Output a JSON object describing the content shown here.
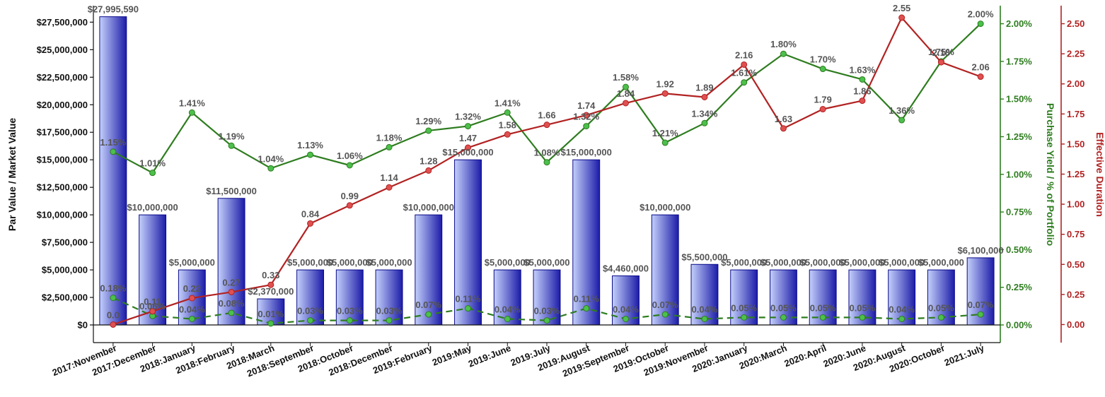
{
  "chart_data": {
    "type": "bar",
    "categories": [
      "2017:November",
      "2017:December",
      "2018:January",
      "2018:February",
      "2018:March",
      "2018:September",
      "2018:October",
      "2018:December",
      "2019:February",
      "2019:May",
      "2019:June",
      "2019:July",
      "2019:August",
      "2019:September",
      "2019:October",
      "2019:November",
      "2020:January",
      "2020:March",
      "2020:April",
      "2020:June",
      "2020:August",
      "2020:October",
      "2021:July"
    ],
    "left_axis": {
      "label": "Par Value / Market Value",
      "ylim": [
        0,
        29000000
      ],
      "ticks": [
        "$0",
        "$2,500,000",
        "$5,000,000",
        "$7,500,000",
        "$10,000,000",
        "$12,500,000",
        "$15,000,000",
        "$17,500,000",
        "$20,000,000",
        "$22,500,000",
        "$25,000,000",
        "$27,500,000"
      ]
    },
    "right_axis_1": {
      "label": "Purchase Yield / % of Portfolio",
      "ylim": [
        0,
        2.12
      ],
      "ticks": [
        "0.00%",
        "0.25%",
        "0.50%",
        "0.75%",
        "1.00%",
        "1.25%",
        "1.50%",
        "1.75%",
        "2.00%"
      ],
      "color": "#2e7d1f"
    },
    "right_axis_2": {
      "label": "Effective Duration",
      "ylim": [
        -0.15,
        2.65
      ],
      "ticks": [
        "0.00",
        "0.25",
        "0.50",
        "0.75",
        "1.00",
        "1.25",
        "1.50",
        "1.75",
        "2.00",
        "2.25",
        "2.50"
      ],
      "color": "#b22222"
    },
    "series": [
      {
        "name": "Par Value",
        "kind": "bar",
        "axis": "left",
        "values": [
          27995590,
          10000000,
          5000000,
          11500000,
          2370000,
          5000000,
          5000000,
          5000000,
          10000000,
          15000000,
          5000000,
          5000000,
          15000000,
          4460000,
          10000000,
          5500000,
          5000000,
          5000000,
          5000000,
          5000000,
          5000000,
          5000000,
          6100000
        ],
        "labels": [
          "$27,995,590",
          "$10,000,000",
          "$5,000,000",
          "$11,500,000",
          "$2,370,000",
          "$5,000,000",
          "$5,000,000",
          "$5,000,000",
          "$10,000,000",
          "$15,000,000",
          "$5,000,000",
          "$5,000,000",
          "$15,000,000",
          "$4,460,000",
          "$10,000,000",
          "$5,500,000",
          "$5,000,000",
          "$5,000,000",
          "$5,000,000",
          "$5,000,000",
          "$5,000,000",
          "$5,000,000",
          "$6,100,000"
        ]
      },
      {
        "name": "Purchase Yield",
        "kind": "line",
        "axis": "right1",
        "color": "#2e7d1f",
        "values": [
          1.15,
          1.01,
          1.41,
          1.19,
          1.04,
          1.13,
          1.06,
          1.18,
          1.29,
          1.32,
          1.41,
          1.08,
          1.32,
          1.58,
          1.21,
          1.34,
          1.61,
          1.8,
          1.7,
          1.63,
          1.36,
          1.75,
          2.0
        ],
        "labels": [
          "1.15%",
          "1.01%",
          "1.41%",
          "1.19%",
          "1.04%",
          "1.13%",
          "1.06%",
          "1.18%",
          "1.29%",
          "1.32%",
          "1.41%",
          "1.08%",
          "1.32%",
          "1.58%",
          "1.21%",
          "1.34%",
          "1.61%",
          "1.80%",
          "1.70%",
          "1.63%",
          "1.36%",
          "1.75%",
          "2.00%"
        ]
      },
      {
        "name": "% of Portfolio",
        "kind": "dashed-line",
        "axis": "right1",
        "color": "#2e7d1f",
        "values": [
          0.18,
          0.06,
          0.04,
          0.08,
          0.01,
          0.03,
          0.03,
          0.03,
          0.07,
          0.11,
          0.04,
          0.03,
          0.11,
          0.04,
          0.07,
          0.04,
          0.05,
          0.05,
          0.05,
          0.05,
          0.04,
          0.05,
          0.07
        ],
        "labels": [
          "0.18%",
          "0.06%",
          "0.04%",
          "0.08%",
          "0.01%",
          "0.03%",
          "0.03%",
          "0.03%",
          "0.07%",
          "0.11%",
          "0.04%",
          "0.03%",
          "0.11%",
          "0.04%",
          "0.07%",
          "0.04%",
          "0.05%",
          "0.05%",
          "0.05%",
          "0.05%",
          "0.04%",
          "0.05%",
          "0.07%"
        ]
      },
      {
        "name": "Effective Duration",
        "kind": "line",
        "axis": "right2",
        "color": "#b22222",
        "values": [
          0.0,
          0.11,
          0.22,
          0.27,
          0.33,
          0.84,
          0.99,
          1.14,
          1.28,
          1.47,
          1.58,
          1.66,
          1.74,
          1.84,
          1.92,
          1.89,
          2.16,
          1.63,
          1.79,
          1.86,
          2.55,
          2.18,
          2.06
        ],
        "labels": [
          "0.0",
          "0.11",
          "0.22",
          "0.27",
          "0.33",
          "0.84",
          "0.99",
          "1.14",
          "1.28",
          "1.47",
          "1.58",
          "1.66",
          "1.74",
          "1.84",
          "1.92",
          "1.89",
          "2.16",
          "1.63",
          "1.79",
          "1.86",
          "2.55",
          "2.18",
          "2.06"
        ]
      }
    ],
    "colors": {
      "bar_light": "#c4d0fb",
      "bar_dark": "#1c1ca8",
      "bar_edge": "#0a0a8a"
    }
  }
}
